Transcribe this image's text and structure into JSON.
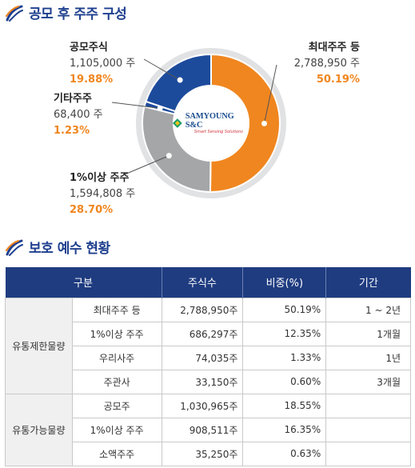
{
  "section1_title": "공모 후 주주 구성",
  "section2_title": "보호 예수 현황",
  "logo": {
    "brand": "SAMYOUNG S&C",
    "tagline": "Smart Sensing Solutions"
  },
  "colors": {
    "orange": "#f0861f",
    "gray": "#a5a6a8",
    "blue": "#1d4b9c",
    "navy": "#1f3c80",
    "ring": "#e1e2e3"
  },
  "chart_data": {
    "type": "pie",
    "categories": [
      "최대주주 등",
      "1%이상 주주",
      "기타주주",
      "공모주식"
    ],
    "shares": [
      "2,788,950 주",
      "1,594,808 주",
      "68,400 주",
      "1,105,000 주"
    ],
    "values": [
      50.19,
      28.7,
      1.23,
      19.88
    ],
    "percent_labels": [
      "50.19%",
      "28.70%",
      "1.23%",
      "19.88%"
    ],
    "colors": [
      "#f0861f",
      "#a5a6a8",
      "#1d4b9c",
      "#1d4b9c"
    ]
  },
  "table": {
    "headers": [
      "구분",
      "주식수",
      "비중(%)",
      "기간"
    ],
    "groups": [
      {
        "label": "유통제한물량",
        "rows": [
          {
            "category": "최대주주 등",
            "shares": "2,788,950주",
            "ratio": "50.19%",
            "period": "1 ~ 2년"
          },
          {
            "category": "1%이상 주주",
            "shares": "686,297주",
            "ratio": "12.35%",
            "period": "1개월"
          },
          {
            "category": "우리사주",
            "shares": "74,035주",
            "ratio": "1.33%",
            "period": "1년"
          },
          {
            "category": "주관사",
            "shares": "33,150주",
            "ratio": "0.60%",
            "period": "3개월"
          }
        ]
      },
      {
        "label": "유통가능물량",
        "rows": [
          {
            "category": "공모주",
            "shares": "1,030,965주",
            "ratio": "18.55%",
            "period": ""
          },
          {
            "category": "1%이상 주주",
            "shares": "908,511주",
            "ratio": "16.35%",
            "period": ""
          },
          {
            "category": "소액주주",
            "shares": "35,250주",
            "ratio": "0.63%",
            "period": ""
          }
        ]
      }
    ]
  }
}
